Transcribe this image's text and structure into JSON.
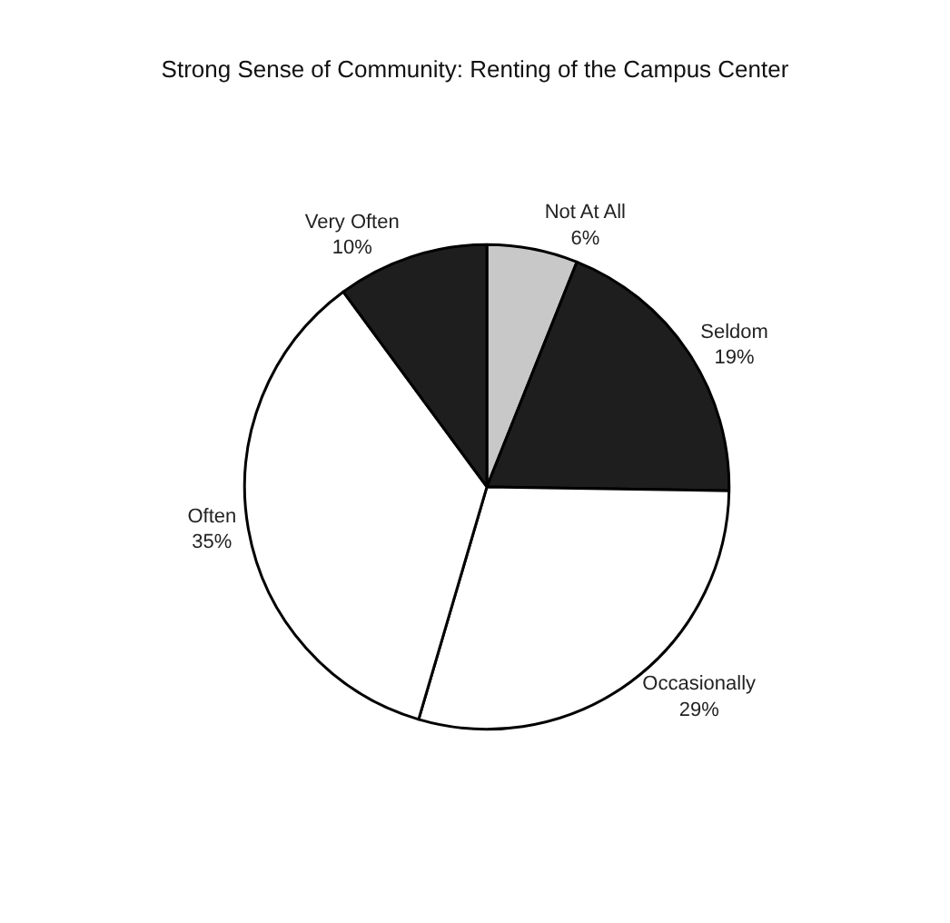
{
  "chart_data": {
    "type": "pie",
    "title": "Strong Sense of Community: Renting of the Campus Center",
    "categories": [
      "Not At All",
      "Seldom",
      "Occasionally",
      "Often",
      "Very Often"
    ],
    "values": [
      6,
      19,
      29,
      35,
      10
    ],
    "value_labels": [
      "6%",
      "19%",
      "29%",
      "35%",
      "10%"
    ],
    "colors": [
      "#c8c8c8",
      "#1e1e1e",
      "#ffffff",
      "#ffffff",
      "#1e1e1e"
    ],
    "legend": false
  }
}
